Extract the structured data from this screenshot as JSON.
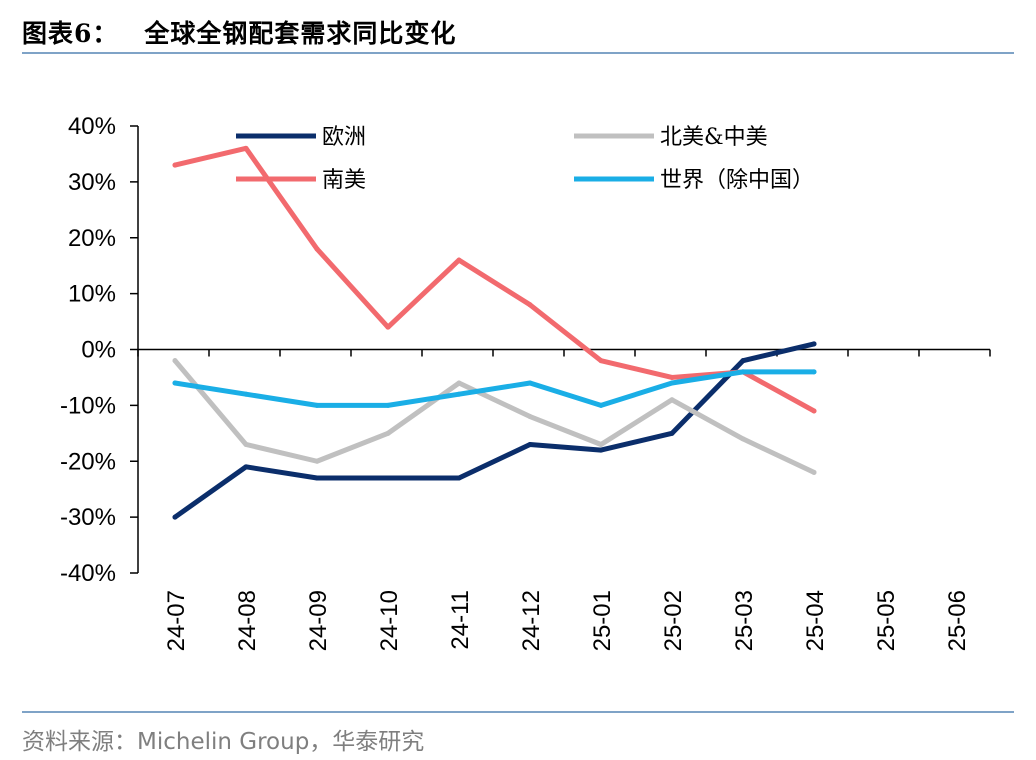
{
  "figure": {
    "label": "图表6：",
    "title": "全球全钢配套需求同比变化",
    "source": "资料来源：Michelin Group，华泰研究"
  },
  "chart_data": {
    "type": "line",
    "title": "全球全钢配套需求同比变化",
    "x": [
      "24-07",
      "24-08",
      "24-09",
      "24-10",
      "24-11",
      "24-12",
      "25-01",
      "25-02",
      "25-03",
      "25-04",
      "25-05",
      "25-06"
    ],
    "y_ticks": [
      "40%",
      "30%",
      "20%",
      "10%",
      "0%",
      "-10%",
      "-20%",
      "-30%",
      "-40%"
    ],
    "ylim": [
      -40,
      40
    ],
    "y_unit": "%",
    "grid": false,
    "legend_position": "top",
    "series": [
      {
        "name": "欧洲",
        "color": "#0b2e6b",
        "values": [
          -30,
          -21,
          -23,
          -23,
          -23,
          -17,
          -18,
          -15,
          -2,
          1,
          null,
          null
        ]
      },
      {
        "name": "北美&中美",
        "color": "#c0c0c0",
        "values": [
          -2,
          -17,
          -20,
          -15,
          -6,
          -12,
          -17,
          -9,
          -16,
          -22,
          null,
          null
        ]
      },
      {
        "name": "南美",
        "color": "#f26a6e",
        "values": [
          33,
          36,
          18,
          4,
          16,
          8,
          -2,
          -5,
          -4,
          -11,
          null,
          null
        ]
      },
      {
        "name": "世界（除中国）",
        "color": "#1aaee6",
        "values": [
          -6,
          -8,
          -10,
          -10,
          -8,
          -6,
          -10,
          -6,
          -4,
          -4,
          null,
          null
        ]
      }
    ]
  }
}
